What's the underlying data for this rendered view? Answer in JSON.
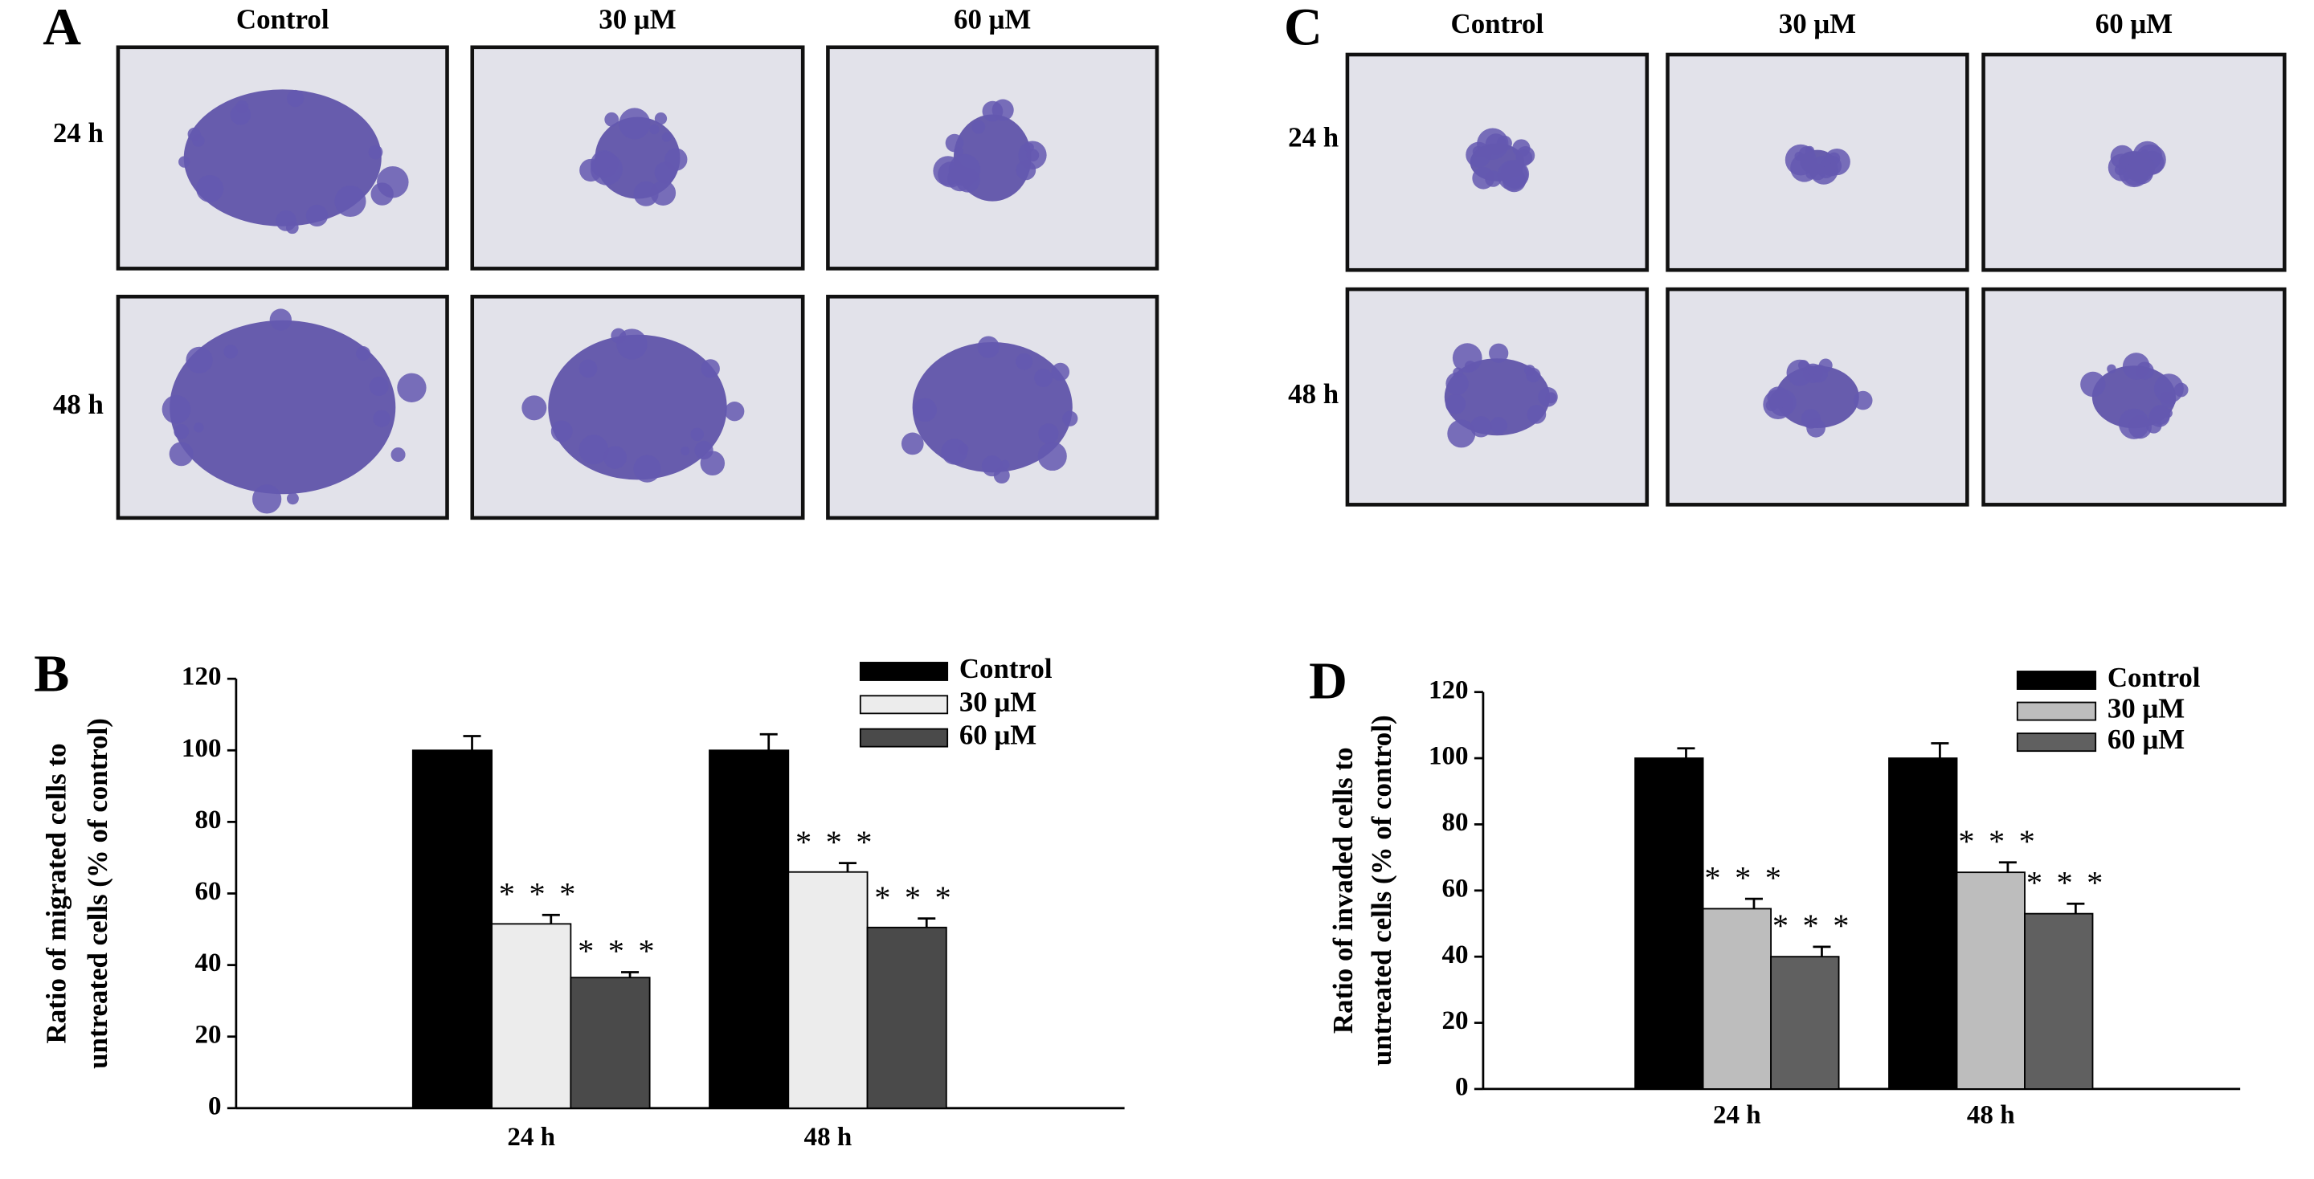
{
  "image_panels": [
    {
      "panel": "A",
      "columns": [
        "Control",
        "30 μM",
        "60 μM"
      ],
      "rows": [
        "24 h",
        "48 h"
      ]
    },
    {
      "panel": "C",
      "columns": [
        "Control",
        "30 μM",
        "60 μM"
      ],
      "rows": [
        "24 h",
        "48 h"
      ]
    }
  ],
  "chart_data": [
    {
      "type": "bar",
      "panel": "B",
      "ylabel": [
        "Ratio of migrated cells to",
        "untreated cells (% of control)"
      ],
      "categories": [
        "24 h",
        "48 h"
      ],
      "series": [
        {
          "name": "Control",
          "color": "#000000",
          "values": [
            100,
            100
          ],
          "errors": [
            4,
            4.5
          ]
        },
        {
          "name": "30 μM",
          "color": "#ececec",
          "values": [
            51.5,
            66
          ],
          "errors": [
            2.5,
            2.5
          ],
          "labels": [
            "* * *",
            "* * *"
          ]
        },
        {
          "name": "60 μM",
          "color": "#4a4a4a",
          "values": [
            36.5,
            50.5
          ],
          "errors": [
            1.5,
            2.5
          ],
          "labels": [
            "* * *",
            "* * *"
          ]
        }
      ],
      "ylim": [
        0,
        120
      ],
      "yticks": [
        0,
        20,
        40,
        60,
        80,
        100,
        120
      ],
      "grid": false,
      "legend": "top-right"
    },
    {
      "type": "bar",
      "panel": "D",
      "ylabel": [
        "Ratio of invaded cells to",
        "untreated cells (% of control)"
      ],
      "categories": [
        "24 h",
        "48 h"
      ],
      "series": [
        {
          "name": "Control",
          "color": "#000000",
          "values": [
            100,
            100
          ],
          "errors": [
            3,
            4.5
          ]
        },
        {
          "name": "30 μM",
          "color": "#bdbdbd",
          "values": [
            54.5,
            65.5
          ],
          "errors": [
            3,
            3
          ],
          "labels": [
            "* * *",
            "* * *"
          ]
        },
        {
          "name": "60 μM",
          "color": "#606060",
          "values": [
            40,
            53
          ],
          "errors": [
            3,
            3
          ],
          "labels": [
            "* * *",
            "* * *"
          ]
        }
      ],
      "ylim": [
        0,
        120
      ],
      "yticks": [
        0,
        20,
        40,
        60,
        80,
        100,
        120
      ],
      "grid": false,
      "legend": "top-right"
    }
  ]
}
